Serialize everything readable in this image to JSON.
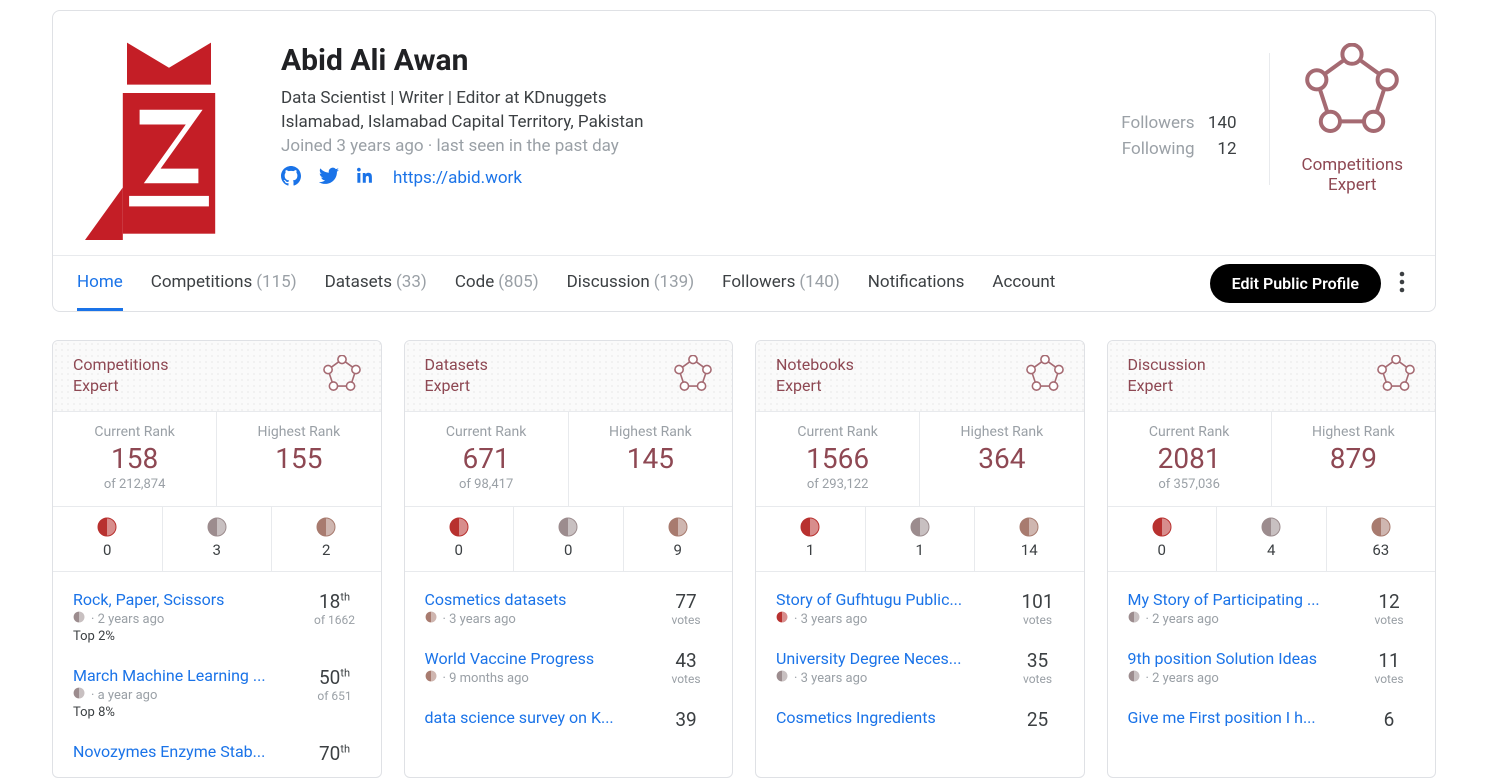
{
  "profile": {
    "display_name": "Abid Ali Awan",
    "occupation": "Data Scientist | Writer | Editor at KDnuggets",
    "location": "Islamabad, Islamabad Capital Territory, Pakistan",
    "joined": "Joined 3 years ago",
    "last_seen": "last seen in the past day",
    "website": "https://abid.work",
    "followers_label": "Followers",
    "followers_count": "140",
    "following_label": "Following",
    "following_count": "12",
    "tier_category": "Competitions",
    "tier_level": "Expert",
    "avatar_primary_color": "#c41e26",
    "social_color": "#1a73e8",
    "tier_color": "#8e4853"
  },
  "tabs": {
    "home": "Home",
    "competitions": {
      "label": "Competitions",
      "count": "(115)"
    },
    "datasets": {
      "label": "Datasets",
      "count": "(33)"
    },
    "code": {
      "label": "Code",
      "count": "(805)"
    },
    "discussion": {
      "label": "Discussion",
      "count": "(139)"
    },
    "followers": {
      "label": "Followers",
      "count": "(140)"
    },
    "notifications": "Notifications",
    "account": "Account",
    "edit_button": "Edit Public Profile"
  },
  "medal_colors": {
    "gold": "#b8312f",
    "silver": "#9c8c8e",
    "bronze": "#a87b6f"
  },
  "cards": [
    {
      "title_line1": "Competitions",
      "title_line2": "Expert",
      "current_label": "Current Rank",
      "current_value": "158",
      "current_of": "of 212,874",
      "highest_label": "Highest Rank",
      "highest_value": "155",
      "medals": [
        "0",
        "3",
        "2"
      ],
      "sub_label": "of",
      "items": [
        {
          "title": "Rock, Paper, Scissors",
          "medal": "silver",
          "age": "2 years ago",
          "percentile": "Top 2%",
          "stat": "18",
          "sup": "th",
          "sub": "of 1662"
        },
        {
          "title": "March Machine Learning ...",
          "medal": "silver",
          "age": "a year ago",
          "percentile": "Top 8%",
          "stat": "50",
          "sup": "th",
          "sub": "of 651"
        },
        {
          "title": "Novozymes Enzyme Stab...",
          "medal": "",
          "age": "",
          "percentile": "",
          "stat": "70",
          "sup": "th",
          "sub": ""
        }
      ]
    },
    {
      "title_line1": "Datasets",
      "title_line2": "Expert",
      "current_label": "Current Rank",
      "current_value": "671",
      "current_of": "of 98,417",
      "highest_label": "Highest Rank",
      "highest_value": "145",
      "medals": [
        "0",
        "0",
        "9"
      ],
      "items": [
        {
          "title": "Cosmetics datasets",
          "medal": "bronze",
          "age": "3 years ago",
          "percentile": "",
          "stat": "77",
          "sup": "",
          "sub": "votes"
        },
        {
          "title": "World Vaccine Progress",
          "medal": "bronze",
          "age": "9 months ago",
          "percentile": "",
          "stat": "43",
          "sup": "",
          "sub": "votes"
        },
        {
          "title": "data science survey on K...",
          "medal": "",
          "age": "",
          "percentile": "",
          "stat": "39",
          "sup": "",
          "sub": ""
        }
      ]
    },
    {
      "title_line1": "Notebooks",
      "title_line2": "Expert",
      "current_label": "Current Rank",
      "current_value": "1566",
      "current_of": "of 293,122",
      "highest_label": "Highest Rank",
      "highest_value": "364",
      "medals": [
        "1",
        "1",
        "14"
      ],
      "items": [
        {
          "title": "Story of Gufhtugu Public...",
          "medal": "gold",
          "age": "3 years ago",
          "percentile": "",
          "stat": "101",
          "sup": "",
          "sub": "votes"
        },
        {
          "title": "University Degree Neces...",
          "medal": "silver",
          "age": "3 years ago",
          "percentile": "",
          "stat": "35",
          "sup": "",
          "sub": "votes"
        },
        {
          "title": "Cosmetics Ingredients",
          "medal": "",
          "age": "",
          "percentile": "",
          "stat": "25",
          "sup": "",
          "sub": ""
        }
      ]
    },
    {
      "title_line1": "Discussion",
      "title_line2": "Expert",
      "current_label": "Current Rank",
      "current_value": "2081",
      "current_of": "of 357,036",
      "highest_label": "Highest Rank",
      "highest_value": "879",
      "medals": [
        "0",
        "4",
        "63"
      ],
      "items": [
        {
          "title": "My Story of Participating ...",
          "medal": "silver",
          "age": "2 years ago",
          "percentile": "",
          "stat": "12",
          "sup": "",
          "sub": "votes"
        },
        {
          "title": "9th position Solution Ideas",
          "medal": "silver",
          "age": "2 years ago",
          "percentile": "",
          "stat": "11",
          "sup": "",
          "sub": "votes"
        },
        {
          "title": "Give me First position I h...",
          "medal": "",
          "age": "",
          "percentile": "",
          "stat": "6",
          "sup": "",
          "sub": ""
        }
      ]
    }
  ]
}
